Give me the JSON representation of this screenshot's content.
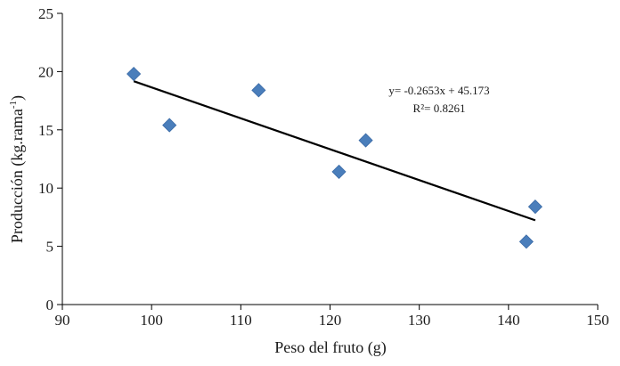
{
  "chart_data": {
    "type": "scatter",
    "xlabel": "Peso del fruto (g)",
    "ylabel_main": "Producción (kg.rama",
    "ylabel_sup": "-1",
    "ylabel_close": ")",
    "xlim": [
      90,
      150
    ],
    "ylim": [
      0,
      25
    ],
    "xticks": [
      90,
      100,
      110,
      120,
      130,
      140,
      150
    ],
    "yticks": [
      0,
      5,
      10,
      15,
      20,
      25
    ],
    "grid": false,
    "legend": "none",
    "points": [
      {
        "x": 98,
        "y": 19.8
      },
      {
        "x": 102,
        "y": 15.4
      },
      {
        "x": 112,
        "y": 18.4
      },
      {
        "x": 121,
        "y": 11.4
      },
      {
        "x": 124,
        "y": 14.1
      },
      {
        "x": 142,
        "y": 5.4
      },
      {
        "x": 143,
        "y": 8.4
      }
    ],
    "trendline": {
      "slope": -0.2653,
      "intercept": 45.173,
      "x_range": [
        98,
        143
      ],
      "color": "#000000"
    },
    "marker_color": "#4a7ebb",
    "annotation": {
      "equation": "y= -0.2653x + 45.173",
      "r_squared": "R²= 0.8261"
    }
  }
}
